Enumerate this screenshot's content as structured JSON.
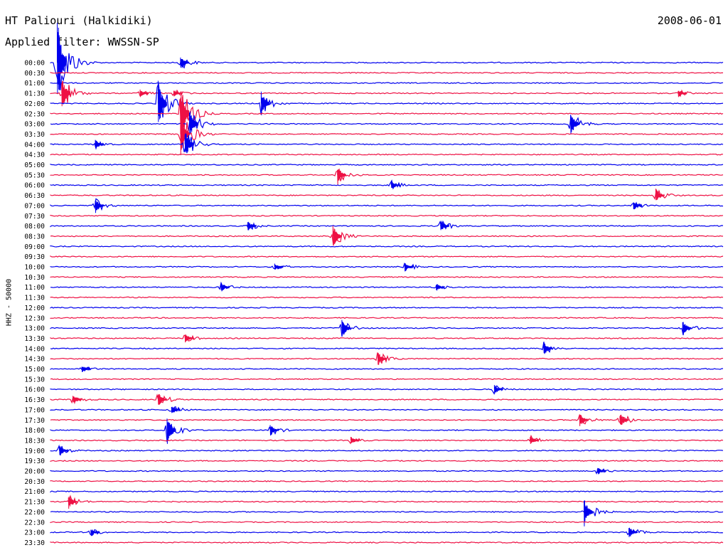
{
  "header": {
    "station": "HT Paliouri (Halkidiki)",
    "date": "2008-06-01",
    "filter": "Applied filter: WWSSN-SP"
  },
  "colors": {
    "blue": "#0000ee",
    "red": "#ee1144",
    "text": "#000000"
  },
  "chart_data": {
    "type": "line",
    "title": "HT Paliouri (Halkidiki)",
    "subtitle": "Applied filter: WWSSN-SP",
    "ylabel": "HHZ - 50000",
    "xlabel": "",
    "rows": [
      "00:00",
      "00:30",
      "01:00",
      "01:30",
      "02:00",
      "02:30",
      "03:00",
      "03:30",
      "04:00",
      "04:30",
      "05:00",
      "05:30",
      "06:00",
      "06:30",
      "07:00",
      "07:30",
      "08:00",
      "08:30",
      "09:00",
      "09:30",
      "10:00",
      "10:30",
      "11:00",
      "11:30",
      "12:00",
      "12:30",
      "13:00",
      "13:30",
      "14:00",
      "14:30",
      "15:00",
      "15:30",
      "16:00",
      "16:30",
      "17:00",
      "17:30",
      "18:00",
      "18:30",
      "19:00",
      "19:30",
      "20:00",
      "20:30",
      "21:00",
      "21:30",
      "22:00",
      "22:30",
      "23:00",
      "23:30"
    ],
    "trace_colors_alternating": [
      "blue",
      "red"
    ],
    "events": [
      {
        "row": "00:00",
        "minute": 0.3,
        "amplitude": 10
      },
      {
        "row": "00:00",
        "minute": 5.8,
        "amplitude": 1.5
      },
      {
        "row": "01:30",
        "minute": 0.5,
        "amplitude": 3.5
      },
      {
        "row": "01:30",
        "minute": 4.0,
        "amplitude": 0.8
      },
      {
        "row": "01:30",
        "minute": 5.5,
        "amplitude": 0.8
      },
      {
        "row": "01:30",
        "minute": 28.0,
        "amplitude": 0.8
      },
      {
        "row": "02:00",
        "minute": 9.4,
        "amplitude": 2.5
      },
      {
        "row": "02:00",
        "minute": 4.8,
        "amplitude": 5
      },
      {
        "row": "02:30",
        "minute": 5.8,
        "amplitude": 6
      },
      {
        "row": "03:00",
        "minute": 23.2,
        "amplitude": 2.5
      },
      {
        "row": "03:00",
        "minute": 6.2,
        "amplitude": 3
      },
      {
        "row": "03:30",
        "minute": 5.8,
        "amplitude": 5
      },
      {
        "row": "04:00",
        "minute": 2.0,
        "amplitude": 1
      },
      {
        "row": "04:00",
        "minute": 6.0,
        "amplitude": 3
      },
      {
        "row": "05:30",
        "minute": 12.8,
        "amplitude": 2
      },
      {
        "row": "06:00",
        "minute": 15.2,
        "amplitude": 1
      },
      {
        "row": "06:30",
        "minute": 27.0,
        "amplitude": 1.5
      },
      {
        "row": "07:00",
        "minute": 2.0,
        "amplitude": 1.5
      },
      {
        "row": "07:00",
        "minute": 26.0,
        "amplitude": 1
      },
      {
        "row": "08:00",
        "minute": 8.8,
        "amplitude": 1
      },
      {
        "row": "08:00",
        "minute": 17.4,
        "amplitude": 1.2
      },
      {
        "row": "08:30",
        "minute": 12.6,
        "amplitude": 2.5
      },
      {
        "row": "10:00",
        "minute": 10.0,
        "amplitude": 0.8
      },
      {
        "row": "10:00",
        "minute": 15.8,
        "amplitude": 1
      },
      {
        "row": "11:00",
        "minute": 7.6,
        "amplitude": 1
      },
      {
        "row": "11:00",
        "minute": 17.2,
        "amplitude": 0.8
      },
      {
        "row": "13:00",
        "minute": 13.0,
        "amplitude": 2
      },
      {
        "row": "13:00",
        "minute": 28.2,
        "amplitude": 1.5
      },
      {
        "row": "13:30",
        "minute": 6.0,
        "amplitude": 1
      },
      {
        "row": "14:00",
        "minute": 22.0,
        "amplitude": 1.5
      },
      {
        "row": "14:30",
        "minute": 14.6,
        "amplitude": 1.5
      },
      {
        "row": "15:00",
        "minute": 1.4,
        "amplitude": 0.8
      },
      {
        "row": "16:00",
        "minute": 19.8,
        "amplitude": 1
      },
      {
        "row": "16:30",
        "minute": 1.0,
        "amplitude": 1
      },
      {
        "row": "16:30",
        "minute": 4.8,
        "amplitude": 1.5
      },
      {
        "row": "17:00",
        "minute": 5.4,
        "amplitude": 1
      },
      {
        "row": "17:30",
        "minute": 23.6,
        "amplitude": 1.5
      },
      {
        "row": "17:30",
        "minute": 25.4,
        "amplitude": 1.5
      },
      {
        "row": "18:00",
        "minute": 5.2,
        "amplitude": 3
      },
      {
        "row": "18:00",
        "minute": 9.8,
        "amplitude": 1.2
      },
      {
        "row": "18:30",
        "minute": 13.4,
        "amplitude": 0.8
      },
      {
        "row": "18:30",
        "minute": 21.4,
        "amplitude": 1
      },
      {
        "row": "19:00",
        "minute": 0.4,
        "amplitude": 1.2
      },
      {
        "row": "20:00",
        "minute": 24.4,
        "amplitude": 0.8
      },
      {
        "row": "21:30",
        "minute": 0.8,
        "amplitude": 1.5
      },
      {
        "row": "22:00",
        "minute": 23.8,
        "amplitude": 3
      },
      {
        "row": "23:00",
        "minute": 1.8,
        "amplitude": 0.8
      },
      {
        "row": "23:00",
        "minute": 25.8,
        "amplitude": 1.2
      }
    ]
  }
}
